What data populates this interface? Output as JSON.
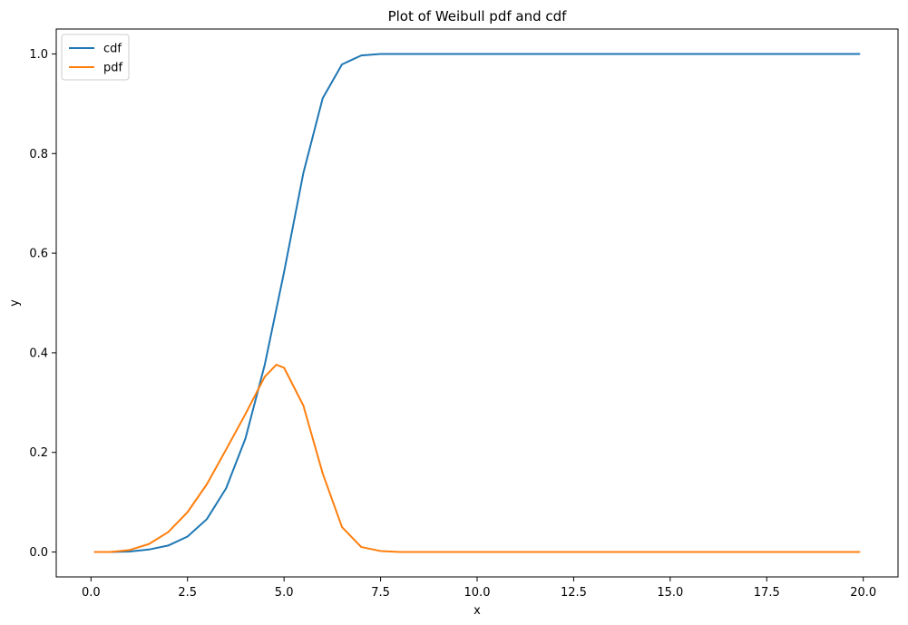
{
  "chart_data": {
    "type": "line",
    "title": "Plot of Weibull pdf and cdf",
    "xlabel": "x",
    "ylabel": "y",
    "xlim": [
      -0.9,
      20.9
    ],
    "ylim": [
      -0.05,
      1.05
    ],
    "xticks": [
      0.0,
      2.5,
      5.0,
      7.5,
      10.0,
      12.5,
      15.0,
      17.5,
      20.0
    ],
    "xtick_labels": [
      "0.0",
      "2.5",
      "5.0",
      "7.5",
      "10.0",
      "12.5",
      "15.0",
      "17.5",
      "20.0"
    ],
    "yticks": [
      0.0,
      0.2,
      0.4,
      0.6,
      0.8,
      1.0
    ],
    "ytick_labels": [
      "0.0",
      "0.2",
      "0.4",
      "0.6",
      "0.8",
      "1.0"
    ],
    "grid": false,
    "legend_position": "top-left",
    "series": [
      {
        "name": "cdf",
        "color": "#1f77b4",
        "x": [
          0.1,
          0.5,
          1.0,
          1.5,
          2.0,
          2.5,
          3.0,
          3.5,
          4.0,
          4.5,
          5.0,
          5.5,
          6.0,
          6.5,
          7.0,
          7.5,
          8.0,
          9.0,
          10.0,
          12.5,
          15.0,
          17.5,
          19.9
        ],
        "y": [
          0.0,
          0.0,
          0.001,
          0.005,
          0.013,
          0.031,
          0.066,
          0.128,
          0.228,
          0.376,
          0.562,
          0.761,
          0.911,
          0.979,
          0.997,
          1.0,
          1.0,
          1.0,
          1.0,
          1.0,
          1.0,
          1.0,
          1.0
        ]
      },
      {
        "name": "pdf",
        "color": "#ff7f0e",
        "x": [
          0.1,
          0.5,
          1.0,
          1.5,
          2.0,
          2.5,
          3.0,
          3.5,
          4.0,
          4.5,
          4.8,
          5.0,
          5.5,
          6.0,
          6.5,
          7.0,
          7.5,
          8.0,
          9.0,
          10.0,
          12.5,
          15.0,
          17.5,
          19.9
        ],
        "y": [
          0.0,
          0.0,
          0.004,
          0.016,
          0.04,
          0.08,
          0.136,
          0.206,
          0.277,
          0.352,
          0.376,
          0.37,
          0.294,
          0.158,
          0.05,
          0.01,
          0.002,
          0.0,
          0.0,
          0.0,
          0.0,
          0.0,
          0.0,
          0.0
        ]
      }
    ]
  }
}
